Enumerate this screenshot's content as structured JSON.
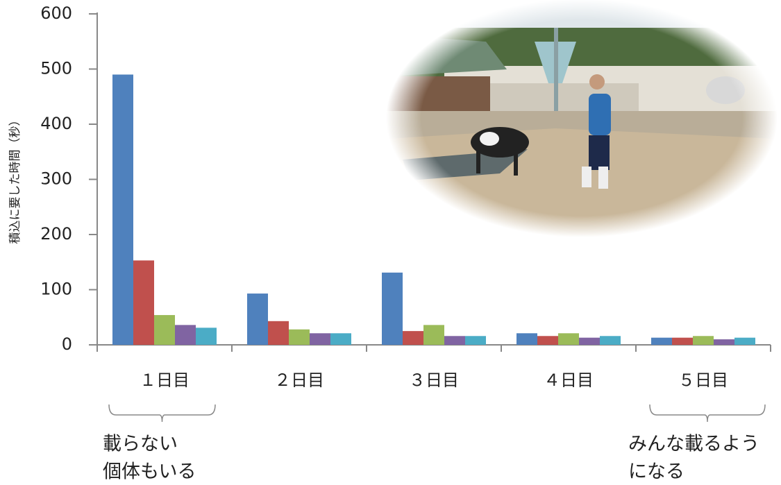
{
  "chart_data": {
    "type": "bar",
    "y_label": "積込に要した時間（秒）",
    "categories": [
      "１日目",
      "２日目",
      "３日目",
      "４日目",
      "５日目"
    ],
    "series": [
      {
        "color": "#4f81bd",
        "values": [
          490,
          93,
          131,
          21,
          13
        ]
      },
      {
        "color": "#c0504d",
        "values": [
          153,
          43,
          25,
          16,
          13
        ]
      },
      {
        "color": "#9bbb59",
        "values": [
          54,
          28,
          36,
          21,
          16
        ]
      },
      {
        "color": "#8064a2",
        "values": [
          36,
          21,
          16,
          13,
          10
        ]
      },
      {
        "color": "#4bacc6",
        "values": [
          31,
          21,
          16,
          16,
          13
        ]
      }
    ],
    "ylim": [
      0,
      600
    ],
    "yticks": [
      0,
      100,
      200,
      300,
      400,
      500,
      600
    ],
    "annotations": [
      {
        "lines": [
          "載らない",
          "個体もいる"
        ]
      },
      {
        "lines": [
          "みんな載るよう",
          "になる"
        ]
      }
    ]
  }
}
